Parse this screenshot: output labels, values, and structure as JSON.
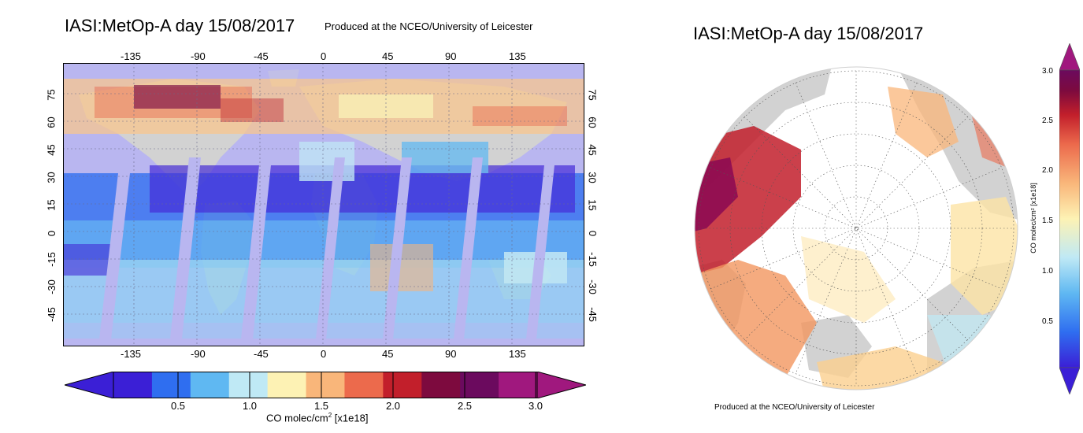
{
  "left_panel": {
    "title": "IASI:MetOp-A day 15/08/2017",
    "credit": "Produced at the NCEO/University of Leicester",
    "lon_ticks": [
      "-135",
      "-90",
      "-45",
      "0",
      "45",
      "90",
      "135"
    ],
    "lat_ticks": [
      "75",
      "60",
      "45",
      "30",
      "15",
      "0",
      "-15",
      "-30",
      "-45"
    ],
    "colorbar": {
      "label_main": "CO molec/cm",
      "label_sup": "2",
      "label_tail": " [x1e18]",
      "ticks": [
        "0.5",
        "1.0",
        "1.5",
        "2.0",
        "2.5",
        "3.0"
      ],
      "colors": [
        "#3b1fd6",
        "#2f6ef0",
        "#5fb8f2",
        "#bfe9f5",
        "#fdf2b4",
        "#f9b67a",
        "#ec6a4c",
        "#c21f2b",
        "#7d0a3e",
        "#6b0a5e",
        "#a0187e"
      ]
    }
  },
  "right_panel": {
    "title": "IASI:MetOp-A day 15/08/2017",
    "credit": "Produced at the NCEO/University of Leicester",
    "colorbar": {
      "label": "CO molec/cm² [x1e18]",
      "ticks": [
        "3.0",
        "2.5",
        "2.0",
        "1.5",
        "1.0",
        "0.5"
      ]
    }
  },
  "colors": {
    "ocean_background": "#b9b6f0",
    "land_gray": "#d2d2d2",
    "polar_background": "#ffffff"
  }
}
